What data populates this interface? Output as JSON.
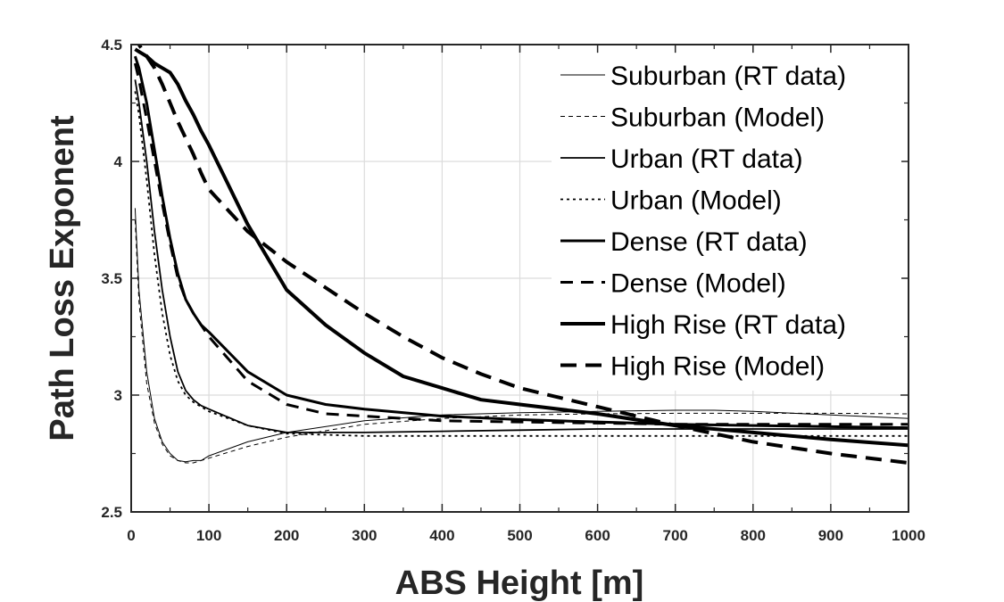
{
  "chart_data": {
    "type": "line",
    "title": "",
    "xlabel": "ABS Height [m]",
    "ylabel": "Path Loss Exponent",
    "xlim": [
      0,
      1000
    ],
    "ylim": [
      2.5,
      4.5
    ],
    "xticks": [
      0,
      100,
      200,
      300,
      400,
      500,
      600,
      700,
      800,
      900,
      1000
    ],
    "yticks": [
      2.5,
      3,
      3.5,
      4,
      4.5
    ],
    "xtick_labels": [
      "0",
      "100",
      "200",
      "300",
      "400",
      "500",
      "600",
      "700",
      "800",
      "900",
      "1000"
    ],
    "ytick_labels": [
      "2.5",
      "3",
      "3.5",
      "4",
      "4.5"
    ],
    "grid": true,
    "legend_position": "top-right",
    "series": [
      {
        "name": "Suburban (RT data)",
        "style": "solid",
        "weight": "thin",
        "x": [
          5,
          10,
          20,
          30,
          40,
          50,
          60,
          70,
          80,
          90,
          100,
          150,
          200,
          300,
          400,
          500,
          600,
          700,
          750,
          800,
          900,
          1000
        ],
        "y": [
          3.8,
          3.45,
          3.1,
          2.9,
          2.8,
          2.75,
          2.72,
          2.715,
          2.72,
          2.72,
          2.74,
          2.8,
          2.84,
          2.89,
          2.915,
          2.925,
          2.93,
          2.935,
          2.935,
          2.93,
          2.915,
          2.9
        ]
      },
      {
        "name": "Suburban (Model)",
        "style": "dashed",
        "weight": "thin",
        "x": [
          5,
          10,
          20,
          30,
          40,
          50,
          60,
          70,
          80,
          90,
          100,
          150,
          200,
          300,
          400,
          500,
          600,
          700,
          800,
          900,
          1000
        ],
        "y": [
          3.75,
          3.4,
          3.05,
          2.88,
          2.79,
          2.74,
          2.72,
          2.71,
          2.71,
          2.72,
          2.73,
          2.78,
          2.82,
          2.875,
          2.9,
          2.915,
          2.92,
          2.922,
          2.922,
          2.922,
          2.92
        ]
      },
      {
        "name": "Urban (RT data)",
        "style": "solid",
        "weight": "medium",
        "x": [
          5,
          10,
          20,
          30,
          40,
          50,
          60,
          70,
          80,
          90,
          100,
          150,
          200,
          300,
          400,
          500,
          600,
          700,
          800,
          900,
          1000
        ],
        "y": [
          4.35,
          4.25,
          4.0,
          3.7,
          3.45,
          3.25,
          3.1,
          3.02,
          2.98,
          2.955,
          2.94,
          2.87,
          2.84,
          2.84,
          2.845,
          2.85,
          2.855,
          2.855,
          2.855,
          2.855,
          2.855
        ]
      },
      {
        "name": "Urban (Model)",
        "style": "dotted",
        "weight": "medium",
        "x": [
          5,
          10,
          20,
          30,
          40,
          50,
          60,
          70,
          80,
          90,
          100,
          150,
          200,
          300,
          400,
          500,
          600,
          700,
          800,
          900,
          1000
        ],
        "y": [
          4.3,
          4.2,
          3.92,
          3.6,
          3.35,
          3.17,
          3.06,
          3.0,
          2.97,
          2.95,
          2.93,
          2.87,
          2.835,
          2.825,
          2.825,
          2.825,
          2.825,
          2.825,
          2.825,
          2.825,
          2.825
        ]
      },
      {
        "name": "Dense (RT data)",
        "style": "solid",
        "weight": "bold",
        "x": [
          5,
          10,
          20,
          30,
          40,
          50,
          60,
          70,
          80,
          90,
          100,
          150,
          200,
          250,
          300,
          400,
          500,
          600,
          700,
          800,
          900,
          1000
        ],
        "y": [
          4.45,
          4.4,
          4.25,
          4.05,
          3.85,
          3.67,
          3.52,
          3.41,
          3.35,
          3.3,
          3.27,
          3.1,
          3.0,
          2.96,
          2.94,
          2.91,
          2.895,
          2.885,
          2.875,
          2.87,
          2.865,
          2.86
        ]
      },
      {
        "name": "Dense (Model)",
        "style": "dashed",
        "weight": "bold",
        "x": [
          5,
          10,
          20,
          30,
          40,
          50,
          60,
          70,
          80,
          90,
          100,
          150,
          200,
          250,
          300,
          400,
          500,
          600,
          700,
          800,
          900,
          1000
        ],
        "y": [
          4.42,
          4.35,
          4.18,
          4.0,
          3.82,
          3.65,
          3.5,
          3.41,
          3.35,
          3.3,
          3.25,
          3.06,
          2.96,
          2.92,
          2.91,
          2.89,
          2.885,
          2.88,
          2.875,
          2.875,
          2.875,
          2.875
        ]
      },
      {
        "name": "High Rise (RT data)",
        "style": "solid",
        "weight": "heavy",
        "x": [
          5,
          10,
          20,
          30,
          40,
          50,
          60,
          70,
          80,
          90,
          100,
          150,
          200,
          250,
          300,
          350,
          400,
          450,
          500,
          600,
          700,
          800,
          900,
          1000
        ],
        "y": [
          4.48,
          4.47,
          4.45,
          4.42,
          4.4,
          4.38,
          4.33,
          4.26,
          4.2,
          4.13,
          4.07,
          3.73,
          3.45,
          3.3,
          3.18,
          3.08,
          3.03,
          2.98,
          2.96,
          2.92,
          2.87,
          2.84,
          2.81,
          2.785
        ]
      },
      {
        "name": "High Rise (Model)",
        "style": "dashed",
        "weight": "heavy",
        "x": [
          5,
          10,
          20,
          30,
          40,
          50,
          60,
          70,
          80,
          90,
          100,
          150,
          200,
          250,
          300,
          350,
          400,
          450,
          500,
          600,
          700,
          800,
          900,
          1000
        ],
        "y": [
          4.55,
          4.5,
          4.45,
          4.4,
          4.33,
          4.25,
          4.17,
          4.1,
          4.03,
          3.95,
          3.88,
          3.7,
          3.57,
          3.46,
          3.35,
          3.25,
          3.16,
          3.09,
          3.03,
          2.95,
          2.87,
          2.8,
          2.75,
          2.71
        ]
      }
    ]
  }
}
